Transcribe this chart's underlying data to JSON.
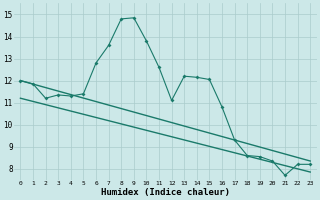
{
  "xlabel": "Humidex (Indice chaleur)",
  "bg_color": "#cce8e8",
  "line_color": "#1a7a6a",
  "grid_color": "#aacccc",
  "x_data": [
    0,
    1,
    2,
    3,
    4,
    5,
    6,
    7,
    8,
    9,
    10,
    11,
    12,
    13,
    14,
    15,
    16,
    17,
    18,
    19,
    20,
    21,
    22,
    23
  ],
  "y_zigzag": [
    12.0,
    11.85,
    11.2,
    11.35,
    11.3,
    11.4,
    12.8,
    13.6,
    14.8,
    14.85,
    13.8,
    12.6,
    11.1,
    12.2,
    12.15,
    12.05,
    10.8,
    9.3,
    8.6,
    8.55,
    8.35,
    7.7,
    8.2,
    8.2
  ],
  "trend1_x": [
    0,
    23
  ],
  "trend1_y": [
    12.0,
    8.35
  ],
  "trend2_x": [
    0,
    23
  ],
  "trend2_y": [
    11.2,
    7.85
  ],
  "xlim": [
    -0.5,
    23.5
  ],
  "ylim": [
    7.5,
    15.5
  ],
  "yticks": [
    8,
    9,
    10,
    11,
    12,
    13,
    14,
    15
  ],
  "xticks": [
    0,
    1,
    2,
    3,
    4,
    5,
    6,
    7,
    8,
    9,
    10,
    11,
    12,
    13,
    14,
    15,
    16,
    17,
    18,
    19,
    20,
    21,
    22,
    23
  ]
}
